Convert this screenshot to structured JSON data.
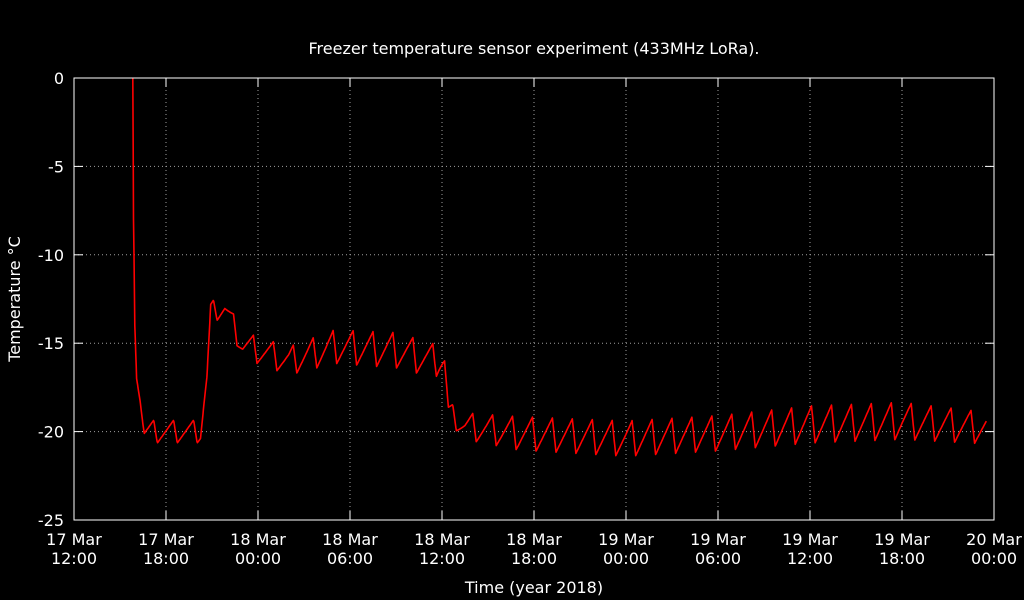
{
  "colors": {
    "background": "#000000",
    "axis": "#ffffff",
    "grid": "#a0a0a0",
    "series": "#ff0000"
  },
  "chart_data": {
    "type": "line",
    "title": "Freezer temperature sensor experiment (433MHz LoRa).",
    "xlabel": "Time (year 2018)",
    "ylabel": "Temperature °C",
    "grid": true,
    "xlim": [
      "2018-03-17 12:00",
      "2018-03-20 00:00"
    ],
    "ylim": [
      -25,
      0
    ],
    "x_ticks": [
      {
        "date": "2018-03-17 12:00",
        "day": "17 Mar",
        "time": "12:00"
      },
      {
        "date": "2018-03-17 18:00",
        "day": "17 Mar",
        "time": "18:00"
      },
      {
        "date": "2018-03-18 00:00",
        "day": "18 Mar",
        "time": "00:00"
      },
      {
        "date": "2018-03-18 06:00",
        "day": "18 Mar",
        "time": "06:00"
      },
      {
        "date": "2018-03-18 12:00",
        "day": "18 Mar",
        "time": "12:00"
      },
      {
        "date": "2018-03-18 18:00",
        "day": "18 Mar",
        "time": "18:00"
      },
      {
        "date": "2018-03-19 00:00",
        "day": "19 Mar",
        "time": "00:00"
      },
      {
        "date": "2018-03-19 06:00",
        "day": "19 Mar",
        "time": "06:00"
      },
      {
        "date": "2018-03-19 12:00",
        "day": "19 Mar",
        "time": "12:00"
      },
      {
        "date": "2018-03-19 18:00",
        "day": "19 Mar",
        "time": "18:00"
      },
      {
        "date": "2018-03-20 00:00",
        "day": "20 Mar",
        "time": "00:00"
      }
    ],
    "y_ticks": [
      0,
      -5,
      -10,
      -15,
      -20,
      -25
    ],
    "series": [
      {
        "color": "#ff0000",
        "oscillation_period_minutes": 78,
        "points": [
          {
            "x": "2018-03-17 15:50",
            "y": 0.0
          },
          {
            "x": "2018-03-17 15:53",
            "y": -8.0
          },
          {
            "x": "2018-03-17 15:58",
            "y": -14.0
          },
          {
            "x": "2018-03-17 16:05",
            "y": -17.0
          },
          {
            "x": "2018-03-17 16:20",
            "y": -18.4
          },
          {
            "x": "2018-03-17 16:35",
            "y": -20.0,
            "amplitude": 0.65
          },
          {
            "x": "2018-03-17 20:15",
            "y": -20.0,
            "amplitude": 0.65
          },
          {
            "x": "2018-03-17 20:40",
            "y": -17.0,
            "amplitude": 0.4
          },
          {
            "x": "2018-03-17 20:55",
            "y": -13.2,
            "amplitude": 0.6
          },
          {
            "x": "2018-03-17 21:50",
            "y": -13.0,
            "amplitude": 0.6
          },
          {
            "x": "2018-03-17 23:00",
            "y": -15.1,
            "amplitude": 0.75
          },
          {
            "x": "2018-03-18 02:00",
            "y": -16.0,
            "amplitude": 0.8
          },
          {
            "x": "2018-03-18 05:00",
            "y": -15.2,
            "amplitude": 0.95
          },
          {
            "x": "2018-03-18 09:00",
            "y": -15.4,
            "amplitude": 1.0
          },
          {
            "x": "2018-03-18 11:30",
            "y": -16.0,
            "amplitude": 0.95
          },
          {
            "x": "2018-03-18 12:10",
            "y": -16.0,
            "amplitude": 0.6
          },
          {
            "x": "2018-03-18 12:25",
            "y": -18.9,
            "amplitude": 0.6
          },
          {
            "x": "2018-03-18 13:30",
            "y": -19.7,
            "amplitude": 0.75
          },
          {
            "x": "2018-03-18 17:00",
            "y": -20.1,
            "amplitude": 0.95
          },
          {
            "x": "2018-03-19 00:00",
            "y": -20.4,
            "amplitude": 1.0
          },
          {
            "x": "2018-03-19 06:00",
            "y": -20.1,
            "amplitude": 1.0
          },
          {
            "x": "2018-03-19 12:00",
            "y": -19.6,
            "amplitude": 1.05
          },
          {
            "x": "2018-03-19 18:00",
            "y": -19.4,
            "amplitude": 1.05
          },
          {
            "x": "2018-03-19 23:30",
            "y": -19.8,
            "amplitude": 0.9
          }
        ]
      }
    ]
  }
}
